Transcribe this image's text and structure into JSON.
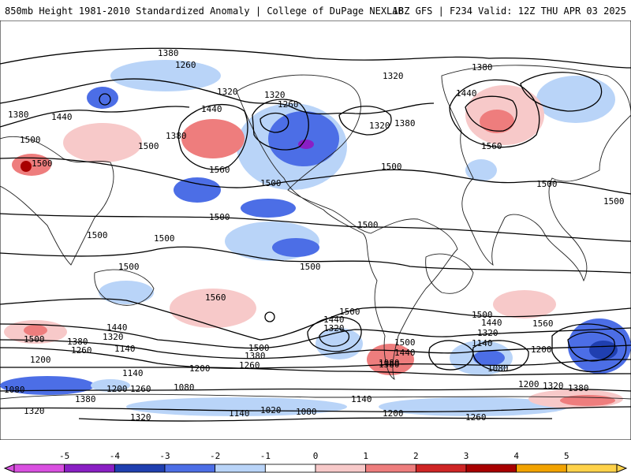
{
  "header": {
    "title": "850mb Height 1981-2010 Standardized Anomaly | College of DuPage NEXLAB",
    "run_info": "18Z GFS | F234 Valid: 12Z THU APR 03 2025"
  },
  "legend": {
    "ticks": [
      "-5",
      "-4",
      "-3",
      "-2",
      "-1",
      "0",
      "1",
      "2",
      "3",
      "4",
      "5"
    ],
    "colors": [
      "#d94fe0",
      "#8a1fc4",
      "#1f3fb0",
      "#4c6ee6",
      "#b9d4f8",
      "#ffffff",
      "#f7c9c9",
      "#ee7d7d",
      "#cf2525",
      "#a80000",
      "#f2a300",
      "#ffd24a"
    ]
  },
  "contours": {
    "labels": [
      "1380",
      "1260",
      "1320",
      "1320",
      "1260",
      "1380",
      "1440",
      "1500",
      "1440",
      "1380",
      "1500",
      "1560",
      "1500",
      "1500",
      "1500",
      "1500",
      "1500",
      "1500",
      "1320",
      "1380",
      "1320",
      "1440",
      "1380",
      "1560",
      "1500",
      "1500",
      "1500",
      "1500",
      "1500",
      "1560",
      "1500",
      "1440",
      "1380",
      "1320",
      "1260",
      "1140",
      "1200",
      "1500",
      "1440",
      "1320",
      "1500",
      "1380",
      "1260",
      "1200",
      "1140",
      "1080",
      "1020",
      "1080",
      "1140",
      "1200",
      "1260",
      "1320",
      "1380",
      "1500",
      "1440",
      "1560",
      "1320",
      "1140",
      "1200",
      "1080",
      "1200",
      "1320",
      "1380",
      "1080",
      "1200",
      "1260",
      "1140",
      "1080",
      "1320",
      "1380",
      "1440",
      "1500"
    ]
  }
}
